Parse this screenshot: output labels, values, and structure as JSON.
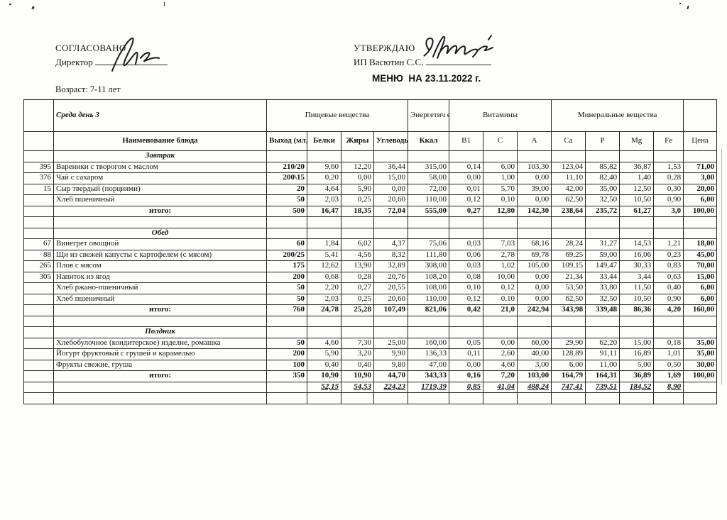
{
  "page": {
    "left_approval": {
      "title": "СОГЛАСОВАНО",
      "subtitle": "Директор"
    },
    "right_approval": {
      "title": "УТВЕРЖДАЮ",
      "subtitle": "ИП Васютин С.С."
    },
    "menu_title": "МЕНЮ  НА 23.11.2022 г.",
    "age_label": "Возраст: 7-11 лет",
    "day_label": "Среда день 3"
  },
  "table": {
    "group_headers": {
      "nutrients": "Пищевые вещества",
      "energy": "Энергетич еская ценность",
      "vitamins": "Витамины",
      "minerals": "Минеральные вещества"
    },
    "columns": [
      "Наименование блюда",
      "Выход (мл,гр)",
      "Белки",
      "Жиры",
      "Углеводы",
      "Ккал",
      "B1",
      "C",
      "A",
      "Ca",
      "P",
      "Mg",
      "Fe",
      "Цена"
    ],
    "total_label": "итого:",
    "sections": [
      {
        "title": "Завтрак",
        "rows": [
          {
            "num": "395",
            "name": "Вареники с творогом с маслом",
            "out": "210/20",
            "values": [
              "9,60",
              "12,20",
              "36,44",
              "315,00",
              "0,14",
              "6,00",
              "103,30",
              "123,04",
              "85,82",
              "36,87",
              "1,53"
            ],
            "price": "71,00"
          },
          {
            "num": "376",
            "name": "Чай с сахаром",
            "out": "200\\15",
            "values": [
              "0,20",
              "0,00",
              "15,00",
              "58,00",
              "0,00",
              "1,00",
              "0,00",
              "11,10",
              "82,40",
              "1,40",
              "0,28"
            ],
            "price": "3,00"
          },
          {
            "num": "15",
            "name": "Сыр твердый (порциями)",
            "out": "20",
            "values": [
              "4,64",
              "5,90",
              "0,00",
              "72,00",
              "0,01",
              "5,70",
              "39,00",
              "42,00",
              "35,00",
              "12,50",
              "0,30"
            ],
            "price": "20,00"
          },
          {
            "num": "",
            "name": "Хлеб пшеничный",
            "out": "50",
            "values": [
              "2,03",
              "0,25",
              "20,60",
              "110,00",
              "0,12",
              "0,10",
              "0,00",
              "62,50",
              "32,50",
              "10,50",
              "0,90"
            ],
            "price": "6,00"
          }
        ],
        "total": {
          "out": "500",
          "values": [
            "16,47",
            "18,35",
            "72,04",
            "555,00",
            "0,27",
            "12,80",
            "142,30",
            "238,64",
            "235,72",
            "61,27",
            "3,0"
          ],
          "price": "100,00"
        }
      },
      {
        "title": "Обед",
        "rows": [
          {
            "num": "67",
            "name": "Винегрет овощной",
            "out": "60",
            "values": [
              "1,84",
              "6,02",
              "4,37",
              "75,06",
              "0,03",
              "7,03",
              "68,16",
              "28,24",
              "31,27",
              "14,53",
              "1,21"
            ],
            "price": "18,00"
          },
          {
            "num": "88",
            "name": "Щи из свежей капусты с картофелем (с мясом)",
            "out": "200/25",
            "values": [
              "5,41",
              "4,56",
              "8,32",
              "111,80",
              "0,06",
              "2,78",
              "69,78",
              "69,25",
              "59,00",
              "16,06",
              "0,23"
            ],
            "price": "45,00"
          },
          {
            "num": "265",
            "name": "Плов с мясом",
            "out": "175",
            "values": [
              "12,62",
              "13,90",
              "32,89",
              "308,00",
              "0,03",
              "1,02",
              "105,00",
              "109,15",
              "149,47",
              "30,33",
              "0,83"
            ],
            "price": "70,00"
          },
          {
            "num": "305",
            "name": "Напиток из ягод",
            "out": "200",
            "values": [
              "0,68",
              "0,28",
              "20,76",
              "108,20",
              "0,08",
              "10,00",
              "0,00",
              "21,34",
              "33,44",
              "3,44",
              "0,63"
            ],
            "price": "15,00"
          },
          {
            "num": "",
            "name": "Хлеб ржано-пшеничный",
            "out": "50",
            "values": [
              "2,20",
              "0,27",
              "20,55",
              "108,00",
              "0,10",
              "0,12",
              "0,00",
              "53,50",
              "33,80",
              "11,50",
              "0,40"
            ],
            "price": "6,00"
          },
          {
            "num": "",
            "name": "Хлеб пшеничный",
            "out": "50",
            "values": [
              "2,03",
              "0,25",
              "20,60",
              "110,00",
              "0,12",
              "0,10",
              "0,00",
              "62,50",
              "32,50",
              "10,50",
              "0,90"
            ],
            "price": "6,00"
          }
        ],
        "total": {
          "out": "760",
          "values": [
            "24,78",
            "25,28",
            "107,49",
            "821,06",
            "0,42",
            "21,0",
            "242,94",
            "343,98",
            "339,48",
            "86,36",
            "4,20"
          ],
          "price": "160,00"
        }
      },
      {
        "title": "Полдник",
        "rows": [
          {
            "num": "",
            "name": "Хлебобулочное (кондитерское) изделие, ромашка",
            "out": "50",
            "values": [
              "4,60",
              "7,30",
              "25,00",
              "160,00",
              "0,05",
              "0,00",
              "60,00",
              "29,90",
              "62,20",
              "15,00",
              "0,18"
            ],
            "price": "35,00"
          },
          {
            "num": "",
            "name": "Йогурт фруктовый с грушей и карамелью",
            "out": "200",
            "values": [
              "5,90",
              "3,20",
              "9,90",
              "136,33",
              "0,11",
              "2,60",
              "40,00",
              "128,89",
              "91,11",
              "16,89",
              "1,01"
            ],
            "price": "35,00"
          },
          {
            "num": "",
            "name": "Фрукты свежие, груша",
            "out": "100",
            "values": [
              "0,40",
              "0,40",
              "9,80",
              "47,00",
              "0,00",
              "4,60",
              "3,00",
              "6,00",
              "11,00",
              "5,00",
              "0,50"
            ],
            "price": "30,00"
          }
        ],
        "total": {
          "out": "350",
          "values": [
            "10,90",
            "10,90",
            "44,70",
            "343,33",
            "0,16",
            "7,20",
            "103,00",
            "164,79",
            "164,31",
            "36,89",
            "1,69"
          ],
          "price": "100,00"
        }
      }
    ],
    "grand_total": {
      "values": [
        "52,15",
        "54,53",
        "224,23",
        "1719,39",
        "0,85",
        "41,04",
        "488,24",
        "747,41",
        "739,51",
        "184,52",
        "8,90"
      ],
      "price": ""
    }
  }
}
